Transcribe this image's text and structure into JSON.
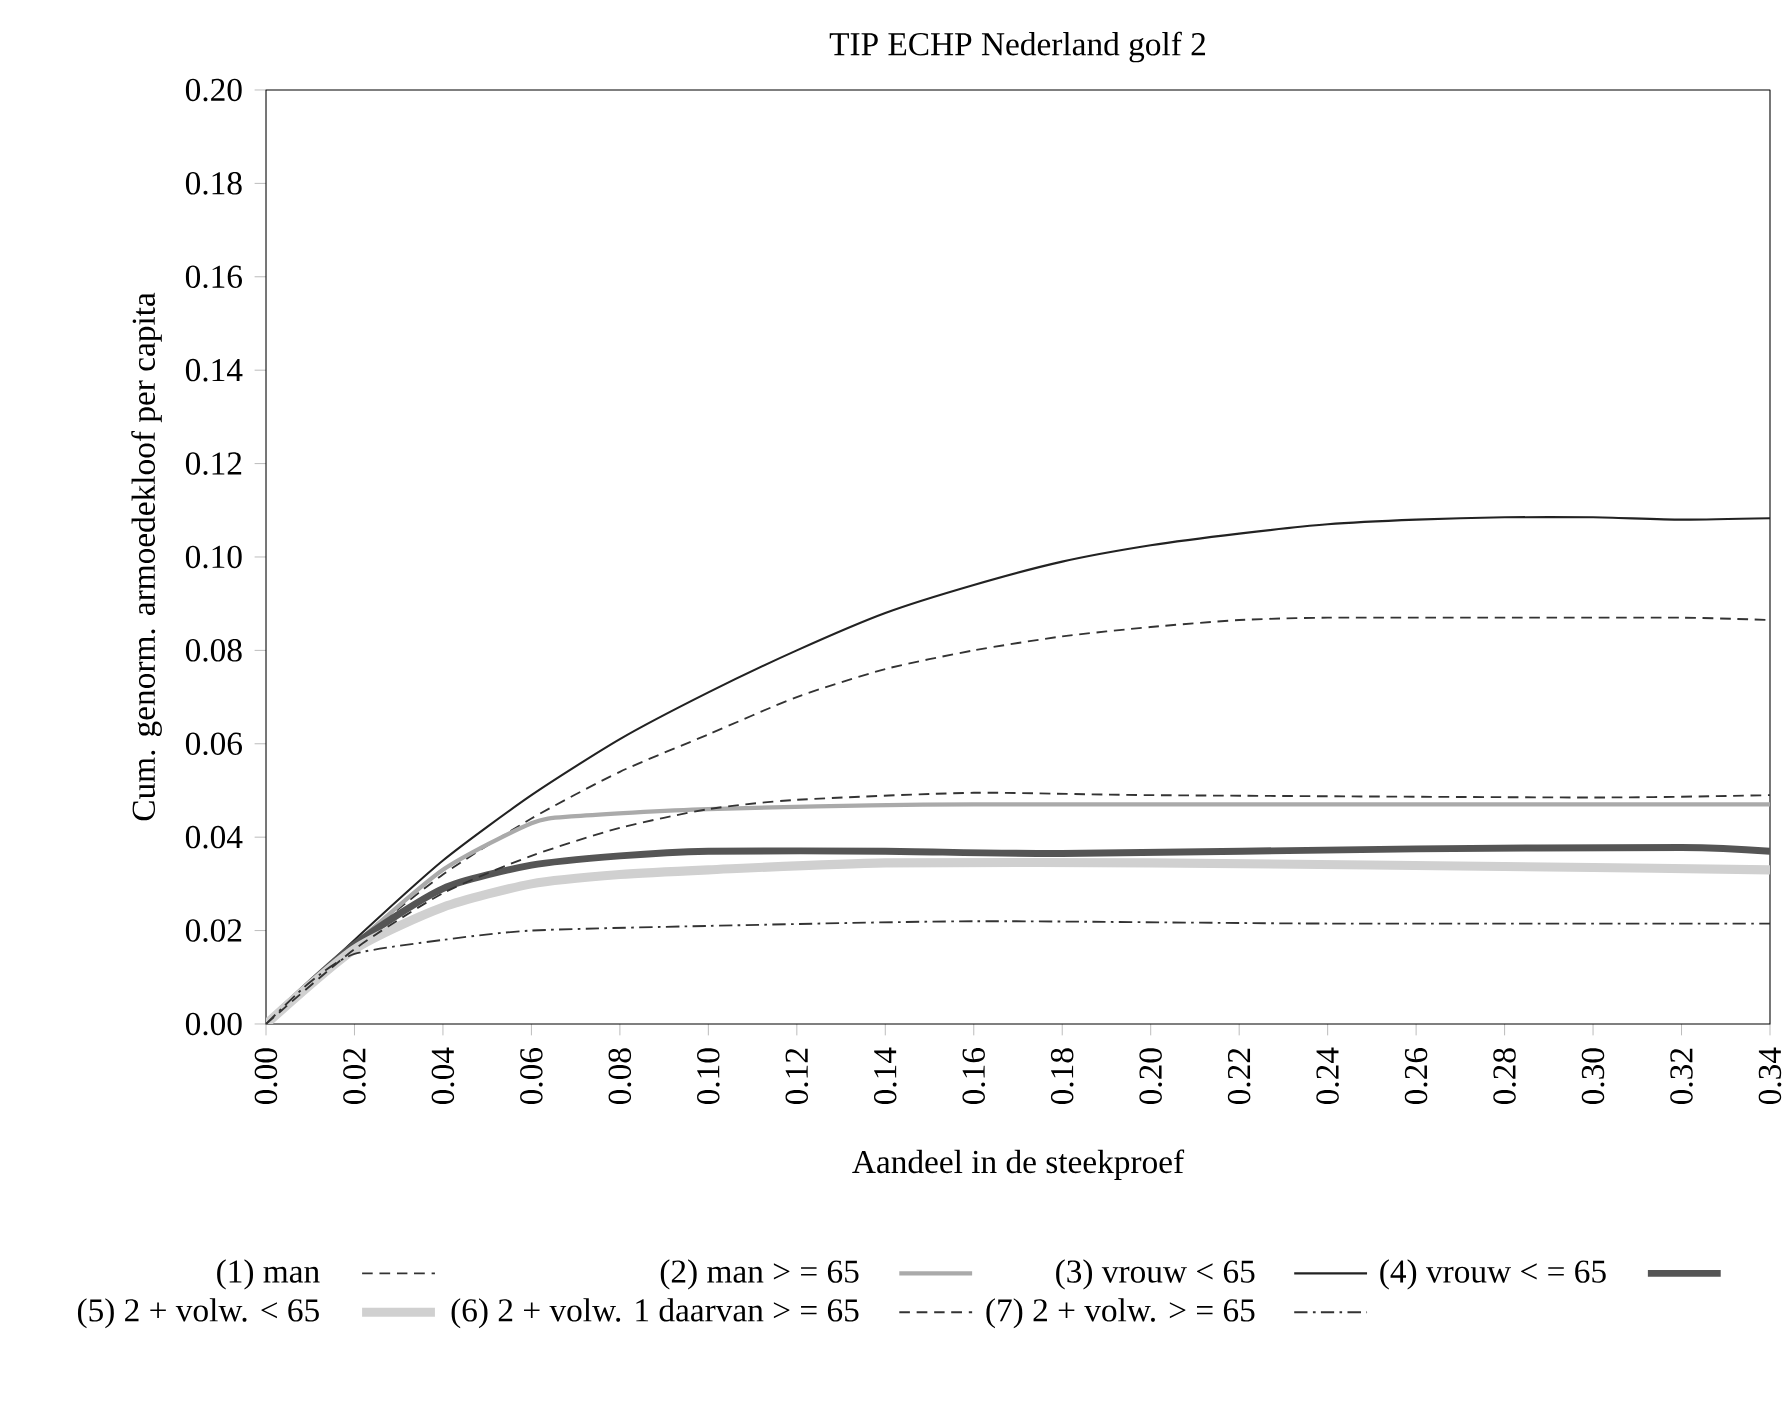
{
  "chart_data": {
    "type": "line",
    "title": "TIP ECHP Nederland golf 2",
    "xlabel": "Aandeel in de steekproef",
    "ylabel": "Cum. genorm. armoedekloof per capita",
    "xlim": [
      0,
      0.34
    ],
    "ylim": [
      0,
      0.2
    ],
    "xticks": [
      {
        "value": 0,
        "label": "0.00"
      },
      0.02,
      0.04,
      0.06,
      0.08,
      {
        "value": 0.1,
        "label": "0.10"
      },
      0.12,
      0.14,
      0.16,
      0.18,
      {
        "value": 0.2,
        "label": "0.20"
      },
      0.22,
      0.24,
      0.26,
      0.28,
      {
        "value": 0.3,
        "label": "0.30"
      },
      0.32,
      0.34
    ],
    "yticks": [
      {
        "value": 0,
        "label": "0.00"
      },
      0.02,
      0.04,
      0.06,
      0.08,
      {
        "value": 0.1,
        "label": "0.10"
      },
      0.12,
      0.14,
      0.16,
      0.18,
      {
        "value": 0.2,
        "label": "0.20"
      }
    ],
    "grid": false,
    "legend": "bottom",
    "marker": "none",
    "series": [
      {
        "name": "(1) man",
        "color": "#333333",
        "line_style": "dashed",
        "x": [
          0,
          0.02,
          0.04,
          0.06,
          0.08,
          0.1,
          0.12,
          0.14,
          0.16,
          0.18,
          0.2,
          0.22,
          0.24,
          0.28,
          0.32,
          0.34
        ],
        "values": [
          0,
          0.017,
          0.032,
          0.044,
          0.054,
          0.062,
          0.07,
          0.076,
          0.08,
          0.083,
          0.085,
          0.0865,
          0.087,
          0.087,
          0.087,
          0.0865
        ]
      },
      {
        "name": "(2) man > = 65",
        "color": "#aaaaaa",
        "line_style": "solid",
        "x": [
          0,
          0.02,
          0.04,
          0.06,
          0.07,
          0.1,
          0.16,
          0.34
        ],
        "values": [
          0,
          0.017,
          0.033,
          0.043,
          0.0445,
          0.046,
          0.047,
          0.047
        ]
      },
      {
        "name": "(3) vrouw < 65",
        "color": "#222222",
        "line_style": "solid",
        "x": [
          0,
          0.02,
          0.04,
          0.06,
          0.08,
          0.1,
          0.12,
          0.14,
          0.16,
          0.18,
          0.2,
          0.22,
          0.24,
          0.26,
          0.28,
          0.3,
          0.32,
          0.34
        ],
        "values": [
          0,
          0.018,
          0.035,
          0.049,
          0.061,
          0.071,
          0.08,
          0.088,
          0.094,
          0.099,
          0.1025,
          0.105,
          0.107,
          0.108,
          0.1085,
          0.1085,
          0.108,
          0.1083
        ]
      },
      {
        "name": "(4) vrouw < = 65",
        "color": "#555555",
        "line_style": "solid",
        "x": [
          0,
          0.02,
          0.04,
          0.06,
          0.08,
          0.1,
          0.14,
          0.18,
          0.26,
          0.32,
          0.34
        ],
        "values": [
          0,
          0.017,
          0.029,
          0.034,
          0.036,
          0.037,
          0.037,
          0.0365,
          0.0375,
          0.0378,
          0.037
        ]
      },
      {
        "name": "(5) 2 +  volw. < 65",
        "color": "#d0d0d0",
        "line_style": "solid",
        "x": [
          0,
          0.02,
          0.04,
          0.06,
          0.08,
          0.1,
          0.14,
          0.2,
          0.3,
          0.34
        ],
        "values": [
          0,
          0.016,
          0.025,
          0.03,
          0.032,
          0.033,
          0.0345,
          0.0345,
          0.0335,
          0.033
        ]
      },
      {
        "name": "(6) 2 +  volw. 1 daarvan > = 65",
        "color": "#333333",
        "line_style": "dashed",
        "x": [
          0,
          0.02,
          0.04,
          0.06,
          0.08,
          0.1,
          0.12,
          0.16,
          0.2,
          0.3,
          0.34
        ],
        "values": [
          0,
          0.016,
          0.028,
          0.036,
          0.042,
          0.046,
          0.048,
          0.0495,
          0.049,
          0.0485,
          0.049
        ]
      },
      {
        "name": "(7) 2 +  volw. > = 65",
        "color": "#333333",
        "line_style": "dashdot",
        "x": [
          0,
          0.01,
          0.02,
          0.04,
          0.06,
          0.1,
          0.16,
          0.24,
          0.34
        ],
        "values": [
          0,
          0.009,
          0.015,
          0.018,
          0.02,
          0.021,
          0.022,
          0.0215,
          0.0215
        ]
      }
    ]
  }
}
